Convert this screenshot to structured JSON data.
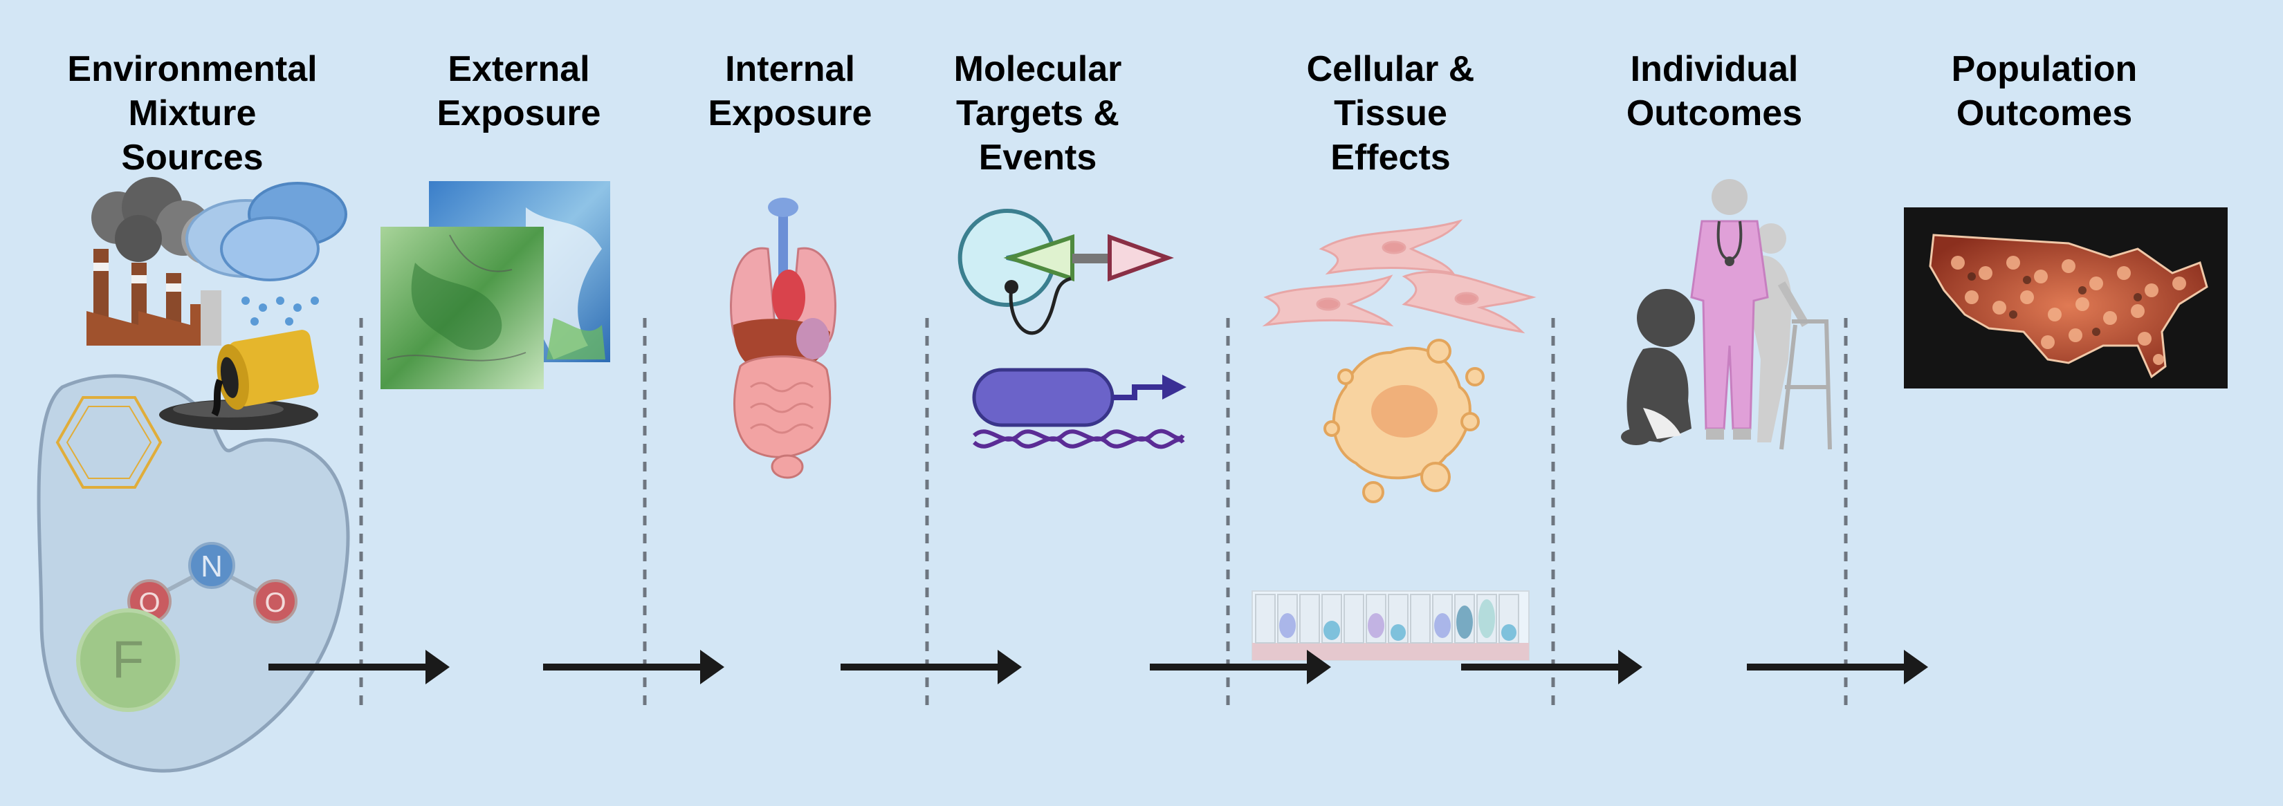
{
  "stages": [
    {
      "title": "Environmental\nMixture\nSources"
    },
    {
      "title": "External\nExposure"
    },
    {
      "title": "Internal\nExposure"
    },
    {
      "title": "Molecular\nTargets &\nEvents"
    },
    {
      "title": "Cellular &\nTissue\nEffects"
    },
    {
      "title": "Individual\nOutcomes"
    },
    {
      "title": "Population\nOutcomes"
    }
  ],
  "mixture_labels": {
    "nitrogen": "N",
    "oxygen_left": "O",
    "oxygen_right": "O",
    "fluorine": "F"
  },
  "colors": {
    "background": "#d3e6f5",
    "arrow": "#1a1a1a",
    "divider": "#6e7680"
  },
  "icons": [
    "factory-smoke-icon",
    "oil-barrel-icon",
    "exposure-map-icon",
    "organs-icon",
    "receptor-icon",
    "gene-promoter-icon",
    "fibroblast-icon",
    "cell-blob-icon",
    "epithelium-icon",
    "people-icon",
    "population-map-icon"
  ]
}
